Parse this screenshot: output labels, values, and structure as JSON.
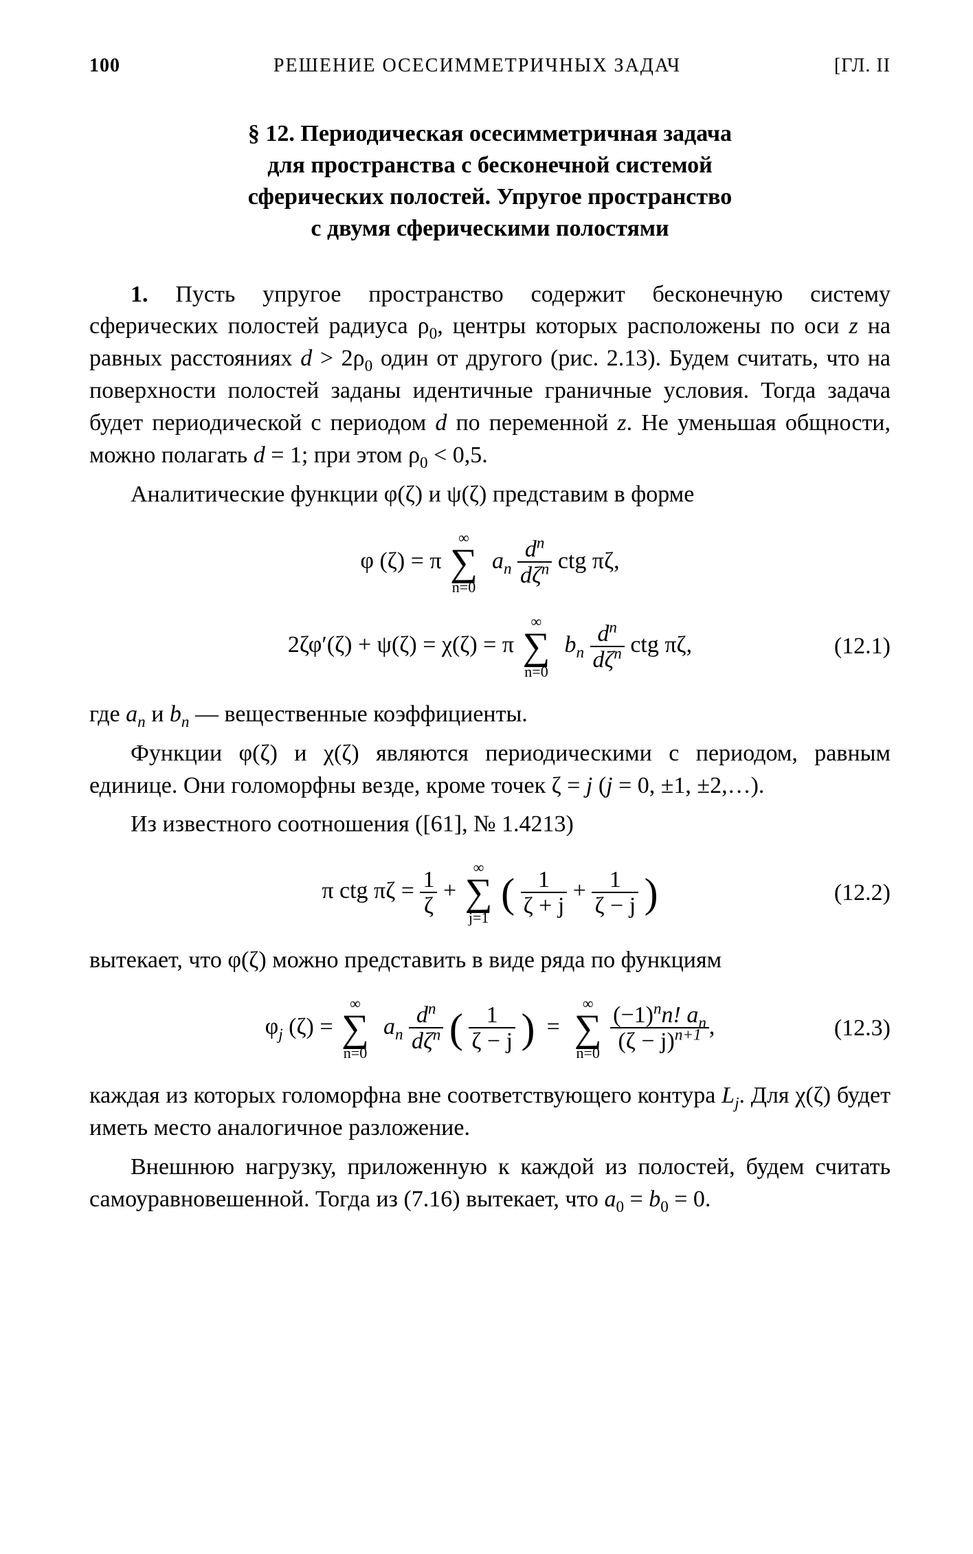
{
  "page": {
    "number": "100",
    "running_title": "РЕШЕНИЕ ОСЕСИММЕТРИЧНЫХ ЗАДАЧ",
    "chapter_mark": "[ГЛ. II"
  },
  "section": {
    "label": "§ 12.",
    "title_lines": [
      "Периодическая осесимметричная задача",
      "для пространства с бесконечной системой",
      "сферических полостей. Упругое пространство",
      "с двумя сферическими полостями"
    ]
  },
  "paras": {
    "p1_lead": "1.",
    "p1": " Пусть упругое пространство содержит бесконечную систему сферических полостей радиуса ρ",
    "p1b": ", центры которых расположены по оси ",
    "p1_z": "z",
    "p1c": " на равных расстояниях ",
    "p1_d": "d",
    "p1_gt": " > 2ρ",
    "p1d": " один от другого (рис. 2.13). Будем считать, что на поверхности полостей заданы идентичные граничные условия. Тогда задача будет периодической с периодом ",
    "p1_d2": "d",
    "p1e": " по переменной ",
    "p1_z2": "z",
    "p1f": ". Не уменьшая общности, можно полагать ",
    "p1_d3": "d",
    "p1g": " = 1; при этом ρ",
    "p1h": " < 0,5.",
    "p2": "Аналитические функции φ(ζ) и ψ(ζ) представим в форме",
    "p3a": "где ",
    "p3_an": "a",
    "p3b": " и ",
    "p3_bn": "b",
    "p3c": " — вещественные коэффициенты.",
    "p4": "Функции φ(ζ) и χ(ζ) являются периодическими с периодом, равным единице. Они голоморфны везде, кроме точек ζ = ",
    "p4_j": "j",
    "p4b": " (",
    "p4_j2": "j",
    "p4c": " = 0, ±1, ±2,…).",
    "p5": "Из известного соотношения ([61], № 1.4213)",
    "p6": "вытекает, что φ(ζ) можно представить в виде ряда по функциям",
    "p7": "каждая из которых голоморфна вне соответствующего контура ",
    "p7_L": "L",
    "p7b": ". Для χ(ζ) будет иметь место аналогичное разложение.",
    "p8": "Внешнюю нагрузку, приложенную к каждой из полостей, будем считать самоуравновешенной. Тогда из (7.16) вытекает, что ",
    "p8_a0": "a",
    "p8b": " = ",
    "p8_b0": "b",
    "p8c": " = 0."
  },
  "eqs": {
    "eq1_num": "(12.1)",
    "eq2_num": "(12.2)",
    "eq3_num": "(12.3)",
    "phi": "φ (ζ) = π",
    "sum_top": "∞",
    "sum_bot_n0": "n=0",
    "sum_bot_j1": "j=1",
    "an": "a",
    "bn": "b",
    "dn_num": "d",
    "dn_den": "dζ",
    "ctg": " ctg πζ,",
    "ctg2": " ctg πζ,",
    "chi_line": "2ζφ′(ζ) + ψ(ζ) = χ(ζ) = π",
    "pi_ctg": "π ctg πζ = ",
    "one": "1",
    "zeta": "ζ",
    "plus": " + ",
    "zeta_plus_j": "ζ + j",
    "zeta_minus_j": "ζ − j",
    "phij": "φ",
    "phij_arg": " (ζ) = ",
    "inv_zmj": "ζ − j",
    "eq3_rhs_num": "(−1)",
    "eq3_rhs_num2": "n! a",
    "eq3_rhs_den": "(ζ − j)",
    "comma": ","
  },
  "sub": {
    "zero": "0",
    "n": "n",
    "j": "j",
    "n_sup": "n",
    "nplus1": "n+1"
  }
}
